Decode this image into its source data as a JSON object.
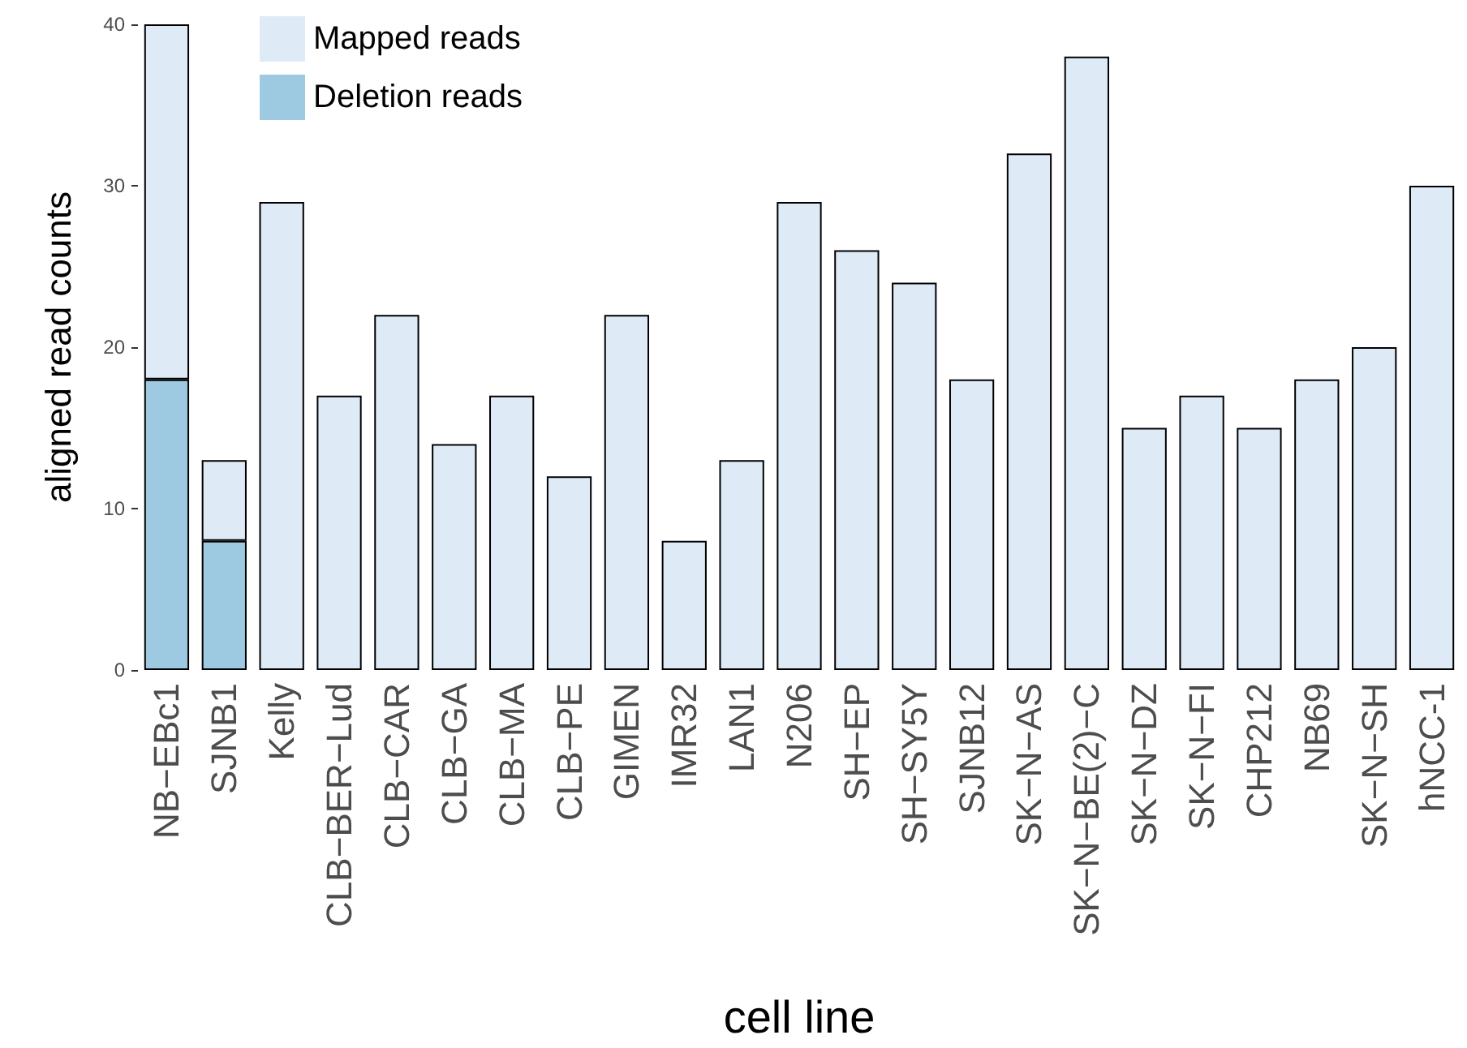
{
  "chart_data": {
    "type": "bar",
    "stacked": true,
    "xlabel": "cell line",
    "ylabel": "aligned read counts",
    "categories": [
      "NB−EBc1",
      "SJNB1",
      "Kelly",
      "CLB−BER−Lud",
      "CLB−CAR",
      "CLB−GA",
      "CLB−MA",
      "CLB−PE",
      "GIMEN",
      "IMR32",
      "LAN1",
      "N206",
      "SH−EP",
      "SH−SY5Y",
      "SJNB12",
      "SK−N−AS",
      "SK−N−BE(2)−C",
      "SK−N−DZ",
      "SK−N−FI",
      "CHP212",
      "NB69",
      "SK−N−SH",
      "hNCC-1"
    ],
    "series": [
      {
        "name": "Deletion reads",
        "color": "#9ecae1",
        "values": [
          18,
          8,
          null,
          null,
          null,
          null,
          null,
          null,
          null,
          null,
          null,
          null,
          null,
          null,
          null,
          null,
          null,
          null,
          null,
          null,
          null,
          null,
          null
        ]
      },
      {
        "name": "Mapped reads",
        "color": "#deebf7",
        "values": [
          22,
          5,
          29,
          17,
          22,
          14,
          17,
          12,
          22,
          8,
          13,
          29,
          26,
          24,
          18,
          32,
          38,
          15,
          17,
          15,
          18,
          20,
          30
        ]
      }
    ],
    "ylim": [
      0,
      40
    ],
    "yticks": [
      0,
      10,
      20,
      30,
      40
    ],
    "grid": false,
    "legend": "top left"
  }
}
